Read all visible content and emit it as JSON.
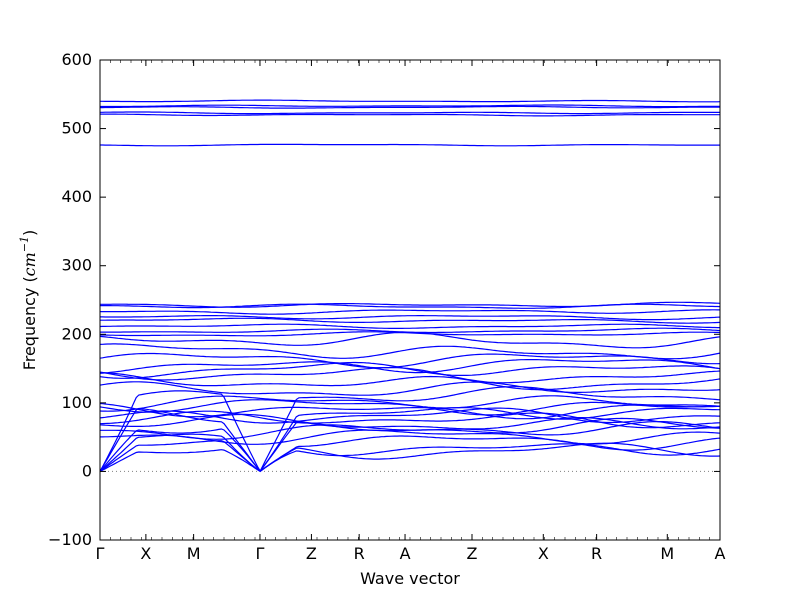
{
  "chart_data": {
    "type": "line",
    "xlabel": "Wave vector",
    "ylabel_text": "Frequency (",
    "ylabel_math": "cm",
    "ylabel_exp": "−1",
    "ylabel_close": ")",
    "ylim": [
      -100,
      600
    ],
    "yticks": [
      -100,
      0,
      100,
      200,
      300,
      400,
      500,
      600
    ],
    "grid": false,
    "legend": "none",
    "line_color": "#0000ff",
    "zero_line_color": "#808080",
    "high_symmetry_points": [
      "Γ",
      "X",
      "M",
      "Γ",
      "Z",
      "R",
      "A",
      "Z",
      "X",
      "R",
      "M",
      "A"
    ],
    "k_positions": [
      0,
      0.074,
      0.151,
      0.258,
      0.341,
      0.418,
      0.492,
      0.6,
      0.715,
      0.801,
      0.915,
      1.0
    ],
    "band_groups": {
      "high_flat": [
        476,
        520,
        523,
        531,
        533,
        540
      ],
      "mid_flat": [
        241,
        243,
        233,
        225,
        220,
        212,
        205,
        200
      ],
      "mid_dispersive": [
        190,
        175,
        165,
        155,
        148,
        140,
        130,
        120
      ],
      "low": [
        110,
        100,
        95,
        90,
        85,
        80,
        75,
        70,
        65,
        60,
        50,
        45,
        35,
        30
      ]
    }
  }
}
